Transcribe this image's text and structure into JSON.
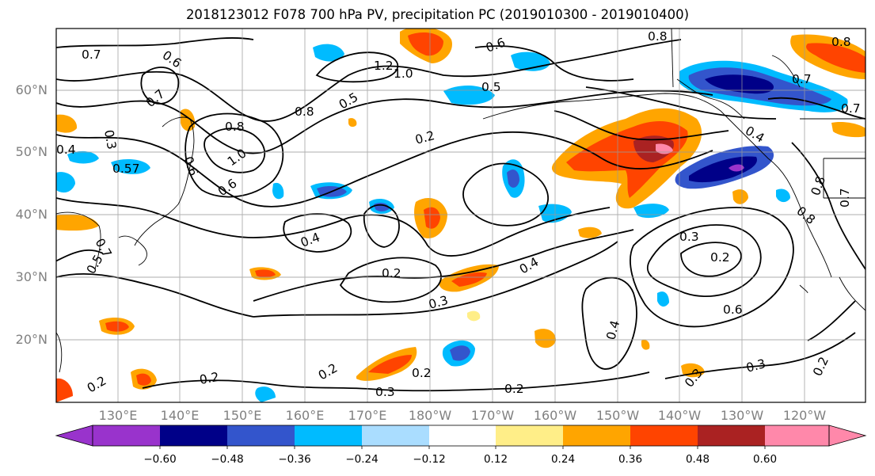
{
  "title": "2018123012 F078 700 hPa PV, precipitation PC (2019010300 - 2019010400)",
  "lat_ticks": [
    "60°N",
    "50°N",
    "40°N",
    "30°N",
    "20°N"
  ],
  "lon_ticks": [
    "130°E",
    "140°E",
    "150°E",
    "160°E",
    "170°E",
    "180°W",
    "170°W",
    "160°W",
    "150°W",
    "140°W",
    "130°W",
    "120°W"
  ],
  "colorbar": {
    "labels": [
      "−0.60",
      "−0.48",
      "−0.36",
      "−0.24",
      "−0.12",
      "0.12",
      "0.24",
      "0.36",
      "0.48",
      "0.60"
    ],
    "colors": [
      "#9933cc",
      "#000088",
      "#3355cc",
      "#00bbff",
      "#aaddff",
      "#ffffff",
      "#ffee88",
      "#ffa500",
      "#ff4400",
      "#aa2222",
      "#ff88aa"
    ]
  },
  "contour_labels": [
    "0.7",
    "0.6",
    "0.7",
    "1.2",
    "1.0",
    "0.5",
    "0.6",
    "0.5",
    "0.8",
    "0.8",
    "0.7",
    "0.8",
    "0.7",
    "0.3",
    "0.8",
    "1.0",
    "0.6",
    "0.2",
    "0.6",
    "0.4",
    "0.57",
    "0.4",
    "0.4",
    "0.5",
    "0.2",
    "0.4",
    "0.3",
    "0.3",
    "0.2",
    "0.6",
    "0.7",
    "0.4",
    "0.2",
    "0.2",
    "0.2",
    "0.3",
    "0.2",
    "0.3",
    "0.3",
    "0.2",
    "0.2",
    "0.8",
    "0.7",
    "0.8"
  ]
}
